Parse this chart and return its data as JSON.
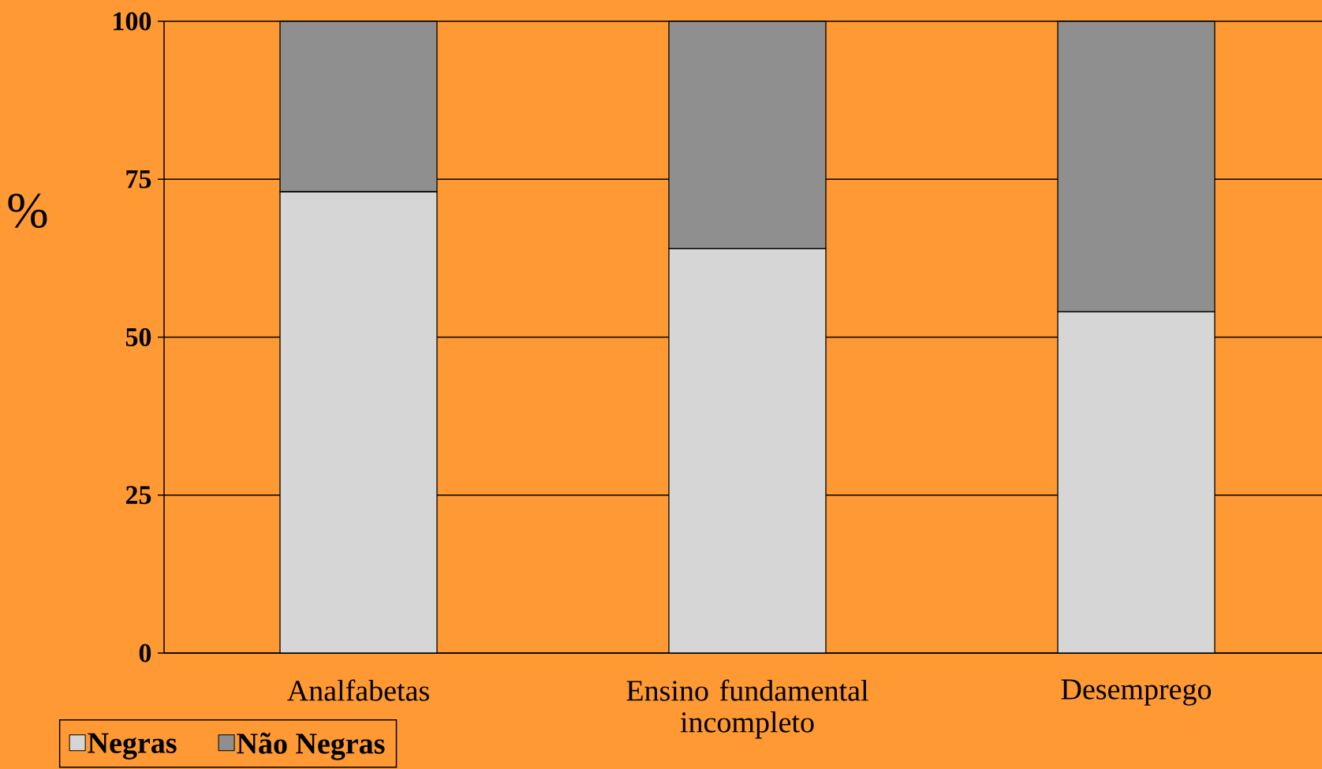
{
  "chart_data": {
    "type": "bar",
    "stacked": true,
    "ylabel": "%",
    "categories": [
      "Analfabetas",
      "Ensino fundamental incompleto",
      "Desemprego"
    ],
    "series": [
      {
        "name": "Negras",
        "color": "#d6d6d6",
        "values": [
          73,
          64,
          54
        ]
      },
      {
        "name": "Não Negras",
        "color": "#8f8f8f",
        "values": [
          27,
          36,
          46
        ]
      }
    ],
    "ylim": [
      0,
      100
    ],
    "yticks": [
      0,
      25,
      50,
      75,
      100
    ],
    "grid": "y",
    "legend": "bottom left"
  }
}
